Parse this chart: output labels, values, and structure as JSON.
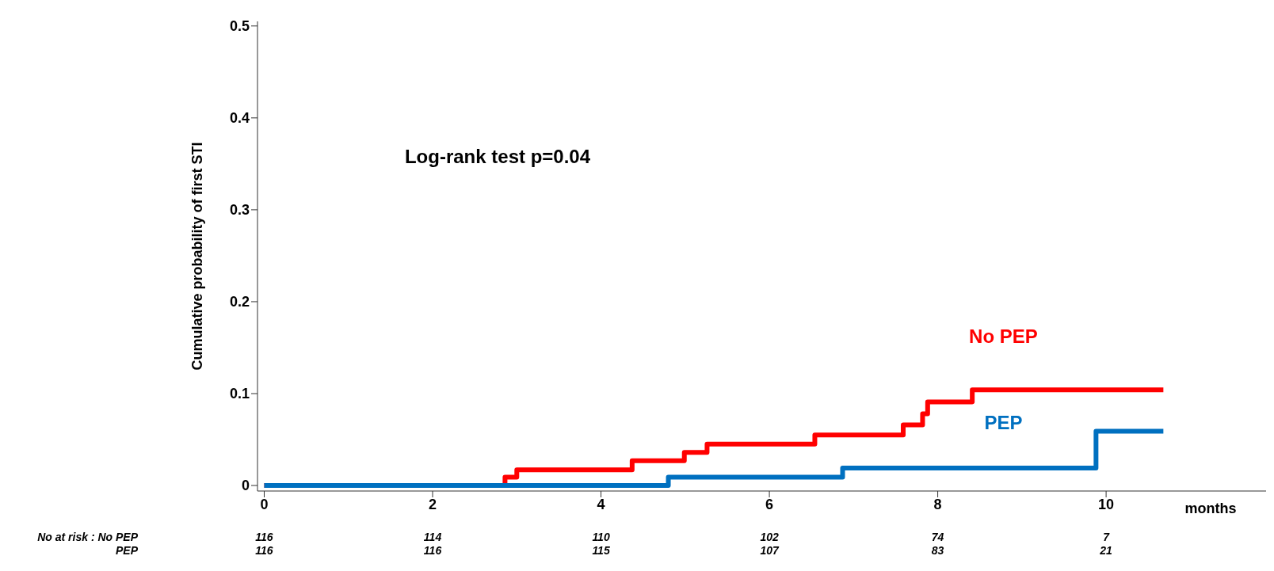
{
  "chart_data": {
    "type": "step",
    "ylabel": "Cumulative probability of first STI",
    "xlabel": "months",
    "xlim": [
      -0.08,
      11.9
    ],
    "xticks": [
      0,
      2,
      4,
      6,
      8,
      10
    ],
    "ylim": [
      -0.006,
      0.505
    ],
    "yticks": [
      0,
      0.1,
      0.2,
      0.3,
      0.4,
      0.5
    ],
    "series": [
      {
        "name": "No PEP",
        "color": "#ff0000",
        "x": [
          0,
          2.86,
          3.0,
          4.37,
          4.99,
          5.26,
          6.54,
          7.59,
          7.82,
          7.88,
          8.41,
          10.68
        ],
        "values": [
          0,
          0.009,
          0.017,
          0.027,
          0.036,
          0.045,
          0.055,
          0.066,
          0.078,
          0.091,
          0.104,
          0.104
        ]
      },
      {
        "name": "PEP",
        "color": "#0070c0",
        "x": [
          0,
          4.8,
          6.87,
          9.88,
          10.68
        ],
        "values": [
          0,
          0.009,
          0.019,
          0.059,
          0.059
        ]
      }
    ],
    "annotations": [
      "Log-rank test p=0.04",
      "No at risk : No PEP",
      "116",
      "114",
      "110",
      "102",
      "74",
      "7",
      "PEP",
      "116",
      "116",
      "115",
      "107",
      "83",
      "21"
    ]
  }
}
